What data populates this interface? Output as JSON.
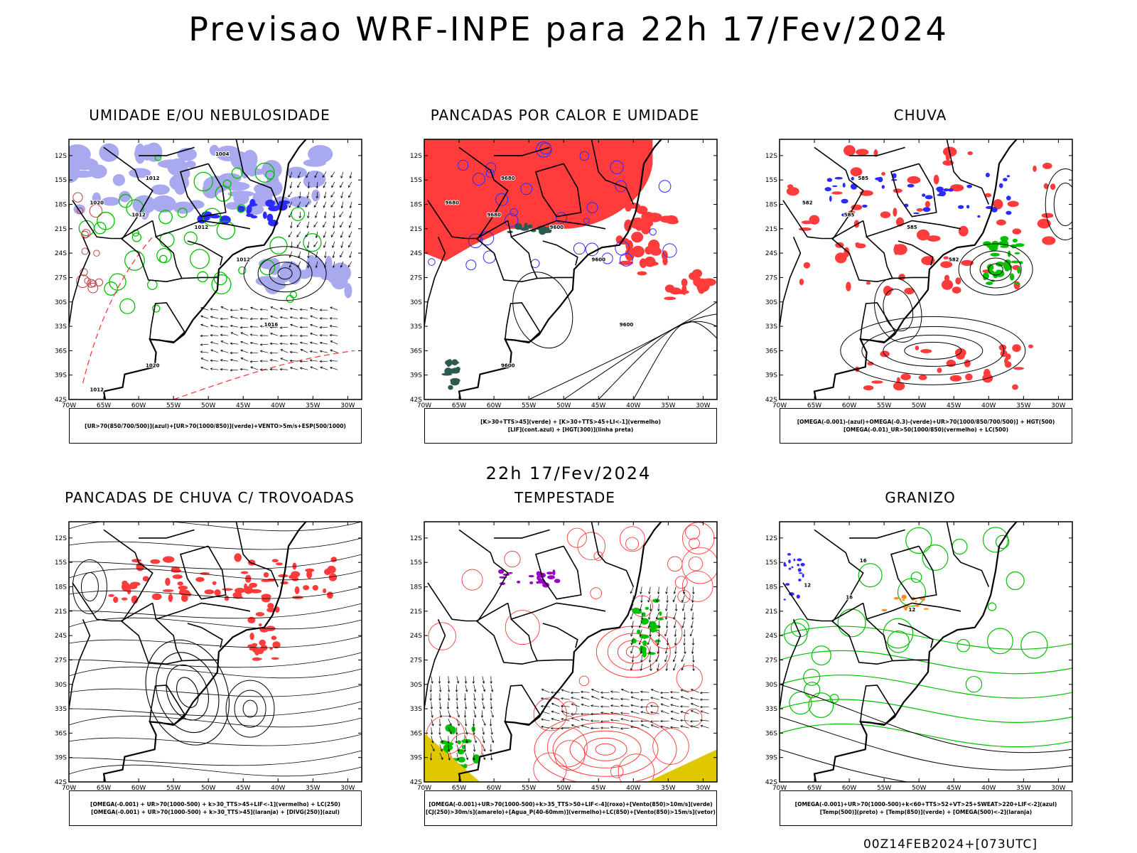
{
  "title": "Previsao WRF-INPE  para 22h 17/Fev/2024",
  "subtitle": "22h 17/Fev/2024",
  "footer": "00Z14FEB2024+[073UTC]",
  "axes": {
    "lat_labels": [
      "12S",
      "15S",
      "18S",
      "21S",
      "24S",
      "27S",
      "30S",
      "33S",
      "36S",
      "39S",
      "42S"
    ],
    "lon_labels": [
      "70W",
      "65W",
      "60W",
      "55W",
      "50W",
      "45W",
      "40W",
      "35W",
      "30W"
    ]
  },
  "colors": {
    "blue": "#2b2bff",
    "green": "#00c000",
    "red": "#ff3b3b",
    "lavender": "#a9a9f0",
    "darkteal": "#2d5a50",
    "purple": "#9a00c8",
    "yellow": "#e0c800",
    "orange": "#ff8a20"
  },
  "panels": [
    {
      "title": "UMIDADE E/OU NEBULOSIDADE",
      "legend": [
        "[UR>70(850/700/500)](azul)+[UR>70(1000/850)](verde)+VENTO>5m/s+ESP(500/1000)"
      ],
      "contour_labels": [
        "1012",
        "1020",
        "1012",
        "1012",
        "1012",
        "1016",
        "1020",
        "1012",
        "1004"
      ]
    },
    {
      "title": "PANCADAS POR CALOR E UMIDADE",
      "legend": [
        "[K>30+TTS>45](verde)  +  [K>30+TTS>45+LI<-1](vermelho)",
        "[LIF](cont.azul)  +  [HGT(300)](linha preta)"
      ],
      "contour_labels": [
        "9680",
        "9680",
        "9680",
        "9600",
        "9600",
        "9600",
        "9600"
      ]
    },
    {
      "title": "CHUVA",
      "legend": [
        "[OMEGA(-0.001)-(azul)+OMEGA(-0.3)-(verde)+UR>70(1000/850/700/500)]  +  HGT(500)",
        "[OMEGA(-0.01)_UR>50(1000/850)(vermelho)  +  LC(500)"
      ],
      "contour_labels": [
        "585",
        "582",
        "585",
        "585",
        "582"
      ]
    },
    {
      "title": "PANCADAS DE CHUVA C/ TROVOADAS",
      "legend": [
        "[OMEGA(-0.001)  +  UR>70(1000-500)  +  k>30_TTS>45+LIF<-1](vermelho)  +  LC(250)",
        "[OMEGA(-0.001)  +  UR>70(1000-500)  +  k>30_TTS>45](laranja)  +  [DIVG(250)](azul)"
      ]
    },
    {
      "title": "TEMPESTADE",
      "legend": [
        "[OMEGA(-0.001)+UR>70(1000-500)+k>35_TTS>50+LIF<-4](roxo)+[Vento(850)>10m/s](verde)",
        "[CJ(250)>30m/s](amarelo)+[Agua_P(40-60mm)](vermelho)+LC(850)+[Vento(850)>15m/s](vetor)"
      ]
    },
    {
      "title": "GRANIZO",
      "legend": [
        "[OMEGA(-0.001)+UR>70(1000-500)+k<60+TTS>52+VT>25+SWEAT>220+LIF<-2](azul)",
        "[Temp(500)](preto)  +  [Temp(850)](verde)  +  [OMEGA(500)<-2](laranja)"
      ],
      "contour_labels": [
        "16",
        "12",
        "16",
        "12"
      ]
    }
  ]
}
